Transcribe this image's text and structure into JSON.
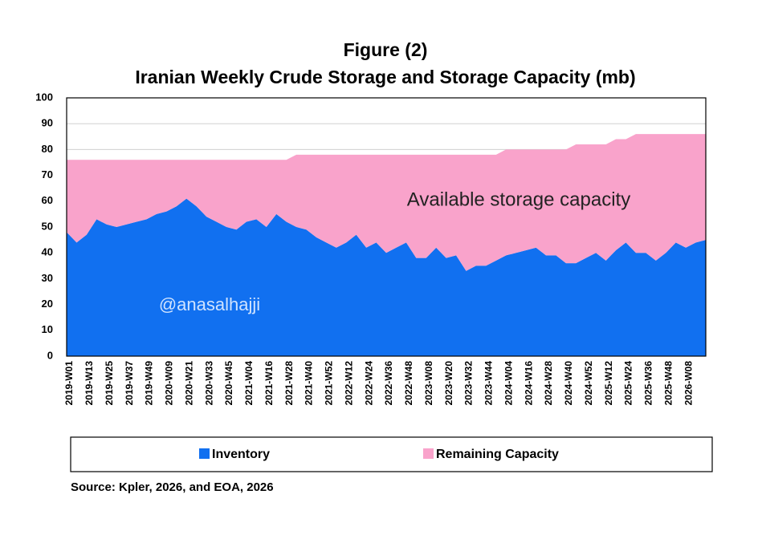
{
  "chart_data": {
    "type": "stacked_area",
    "title": "Figure (2)",
    "subtitle": "Iranian Weekly Crude Storage and Storage Capacity (mb)",
    "source": "Source: Kpler, 2026, and EOA, 2026",
    "annotations": [
      "Available storage capacity",
      "@anasalhajji"
    ],
    "categories": [
      "2019-W01",
      null,
      "2019-W13",
      null,
      "2019-W25",
      null,
      "2019-W37",
      null,
      "2019-W49",
      null,
      "2020-W09",
      null,
      "2020-W21",
      null,
      "2020-W33",
      null,
      "2020-W45",
      null,
      "2021-W04",
      null,
      "2021-W16",
      null,
      "2021-W28",
      null,
      "2021-W40",
      null,
      "2021-W52",
      null,
      "2022-W12",
      null,
      "2022-W24",
      null,
      "2022-W36",
      null,
      "2022-W48",
      null,
      "2023-W08",
      null,
      "2023-W20",
      null,
      "2023-W32",
      null,
      "2023-W44",
      null,
      "2024-W04",
      null,
      "2024-W16",
      null,
      "2024-W28",
      null,
      "2024-W40",
      null,
      "2024-W52",
      null,
      "2025-W12",
      null,
      "2025-W24",
      null,
      "2025-W36",
      null,
      "2025-W48",
      null,
      "2026-W08",
      null,
      null
    ],
    "series": [
      {
        "name": "Inventory",
        "color": "#1170f0",
        "values": [
          48,
          44,
          47,
          53,
          51,
          50,
          51,
          52,
          53,
          55,
          56,
          58,
          61,
          58,
          54,
          52,
          50,
          49,
          52,
          53,
          50,
          55,
          52,
          50,
          49,
          46,
          44,
          42,
          44,
          47,
          42,
          44,
          40,
          42,
          44,
          38,
          38,
          42,
          38,
          39,
          33,
          35,
          35,
          37,
          39,
          40,
          41,
          42,
          39,
          39,
          36,
          36,
          38,
          40,
          37,
          41,
          44,
          40,
          40,
          37,
          40,
          44,
          42,
          44,
          45
        ]
      },
      {
        "name": "Remaining Capacity",
        "color": "#f9a3cb",
        "values": [
          28,
          32,
          29,
          23,
          25,
          26,
          25,
          24,
          23,
          21,
          20,
          18,
          15,
          18,
          22,
          24,
          26,
          27,
          24,
          23,
          26,
          21,
          24,
          28,
          29,
          32,
          34,
          36,
          34,
          31,
          36,
          34,
          38,
          36,
          34,
          40,
          40,
          36,
          40,
          39,
          45,
          43,
          43,
          41,
          41,
          40,
          39,
          38,
          41,
          41,
          44,
          46,
          44,
          42,
          45,
          43,
          40,
          46,
          46,
          49,
          46,
          42,
          44,
          42,
          41
        ]
      }
    ],
    "ylim": [
      0,
      100
    ],
    "yticks": [
      0,
      10,
      20,
      30,
      40,
      50,
      60,
      70,
      80,
      90,
      100
    ],
    "grid": true
  }
}
